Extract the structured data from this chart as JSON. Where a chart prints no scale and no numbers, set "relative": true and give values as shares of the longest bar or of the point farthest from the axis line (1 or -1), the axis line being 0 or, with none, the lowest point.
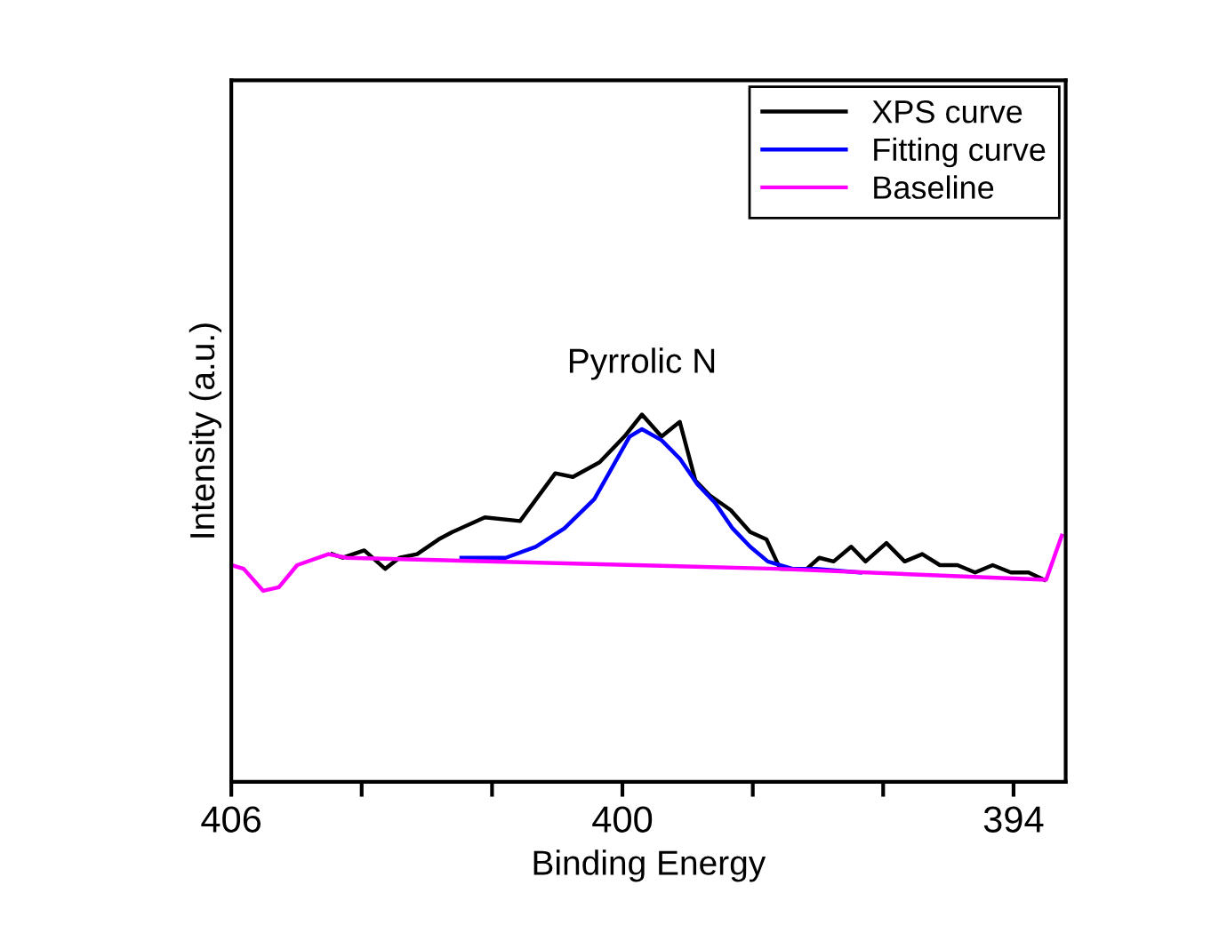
{
  "chart_data": {
    "type": "line",
    "relative": true,
    "xlabel": "Binding Energy",
    "ylabel": "Intensity (a.u.)",
    "xlim": [
      406,
      393.2
    ],
    "xticks": [
      406,
      {
        "value": 404,
        "label": null
      },
      {
        "value": 402,
        "label": null
      },
      400,
      {
        "value": 398,
        "label": null
      },
      {
        "value": 396,
        "label": null
      },
      394
    ],
    "tick_labels": "x",
    "grid": false,
    "legend": "top right",
    "marker": "none",
    "line_style": "solid",
    "annotations": [
      {
        "text": "Pyrrolic N",
        "x": 399.7,
        "y": 1.0
      }
    ],
    "series": [
      {
        "name": "XPS curve",
        "color": "#000000",
        "x": [
          404.45,
          404.29,
          403.96,
          403.64,
          403.42,
          403.15,
          402.82,
          402.61,
          402.11,
          401.57,
          401.03,
          400.76,
          400.35,
          399.97,
          399.7,
          399.4,
          399.12,
          398.88,
          398.66,
          398.34,
          398.04,
          397.79,
          397.58,
          397.17,
          396.98,
          396.76,
          396.49,
          396.27,
          395.95,
          395.67,
          395.4,
          395.13,
          394.86,
          394.59,
          394.32,
          394.04,
          393.77,
          393.53
        ],
        "values": [
          0.62,
          0.61,
          0.63,
          0.58,
          0.61,
          0.62,
          0.66,
          0.68,
          0.72,
          0.71,
          0.84,
          0.83,
          0.87,
          0.94,
          1.0,
          0.94,
          0.98,
          0.82,
          0.78,
          0.74,
          0.68,
          0.66,
          0.58,
          0.58,
          0.61,
          0.6,
          0.64,
          0.6,
          0.65,
          0.6,
          0.62,
          0.59,
          0.59,
          0.57,
          0.59,
          0.57,
          0.57,
          0.55
        ]
      },
      {
        "name": "Fitting curve",
        "color": "#0000ff",
        "x": [
          402.47,
          401.79,
          401.33,
          400.89,
          400.43,
          399.89,
          399.7,
          399.4,
          399.12,
          398.85,
          398.58,
          398.31,
          398.04,
          397.77,
          397.39,
          397.03,
          396.35
        ],
        "values": [
          0.61,
          0.61,
          0.64,
          0.69,
          0.77,
          0.94,
          0.96,
          0.93,
          0.88,
          0.81,
          0.76,
          0.69,
          0.64,
          0.6,
          0.58,
          0.58,
          0.57
        ]
      },
      {
        "name": "Baseline",
        "color": "#ff00ff",
        "x": [
          406.0,
          405.81,
          405.51,
          405.27,
          404.99,
          404.51,
          404.23,
          397.63,
          393.5,
          393.26
        ],
        "values": [
          0.59,
          0.58,
          0.52,
          0.53,
          0.59,
          0.62,
          0.61,
          0.58,
          0.55,
          0.67
        ]
      }
    ]
  }
}
